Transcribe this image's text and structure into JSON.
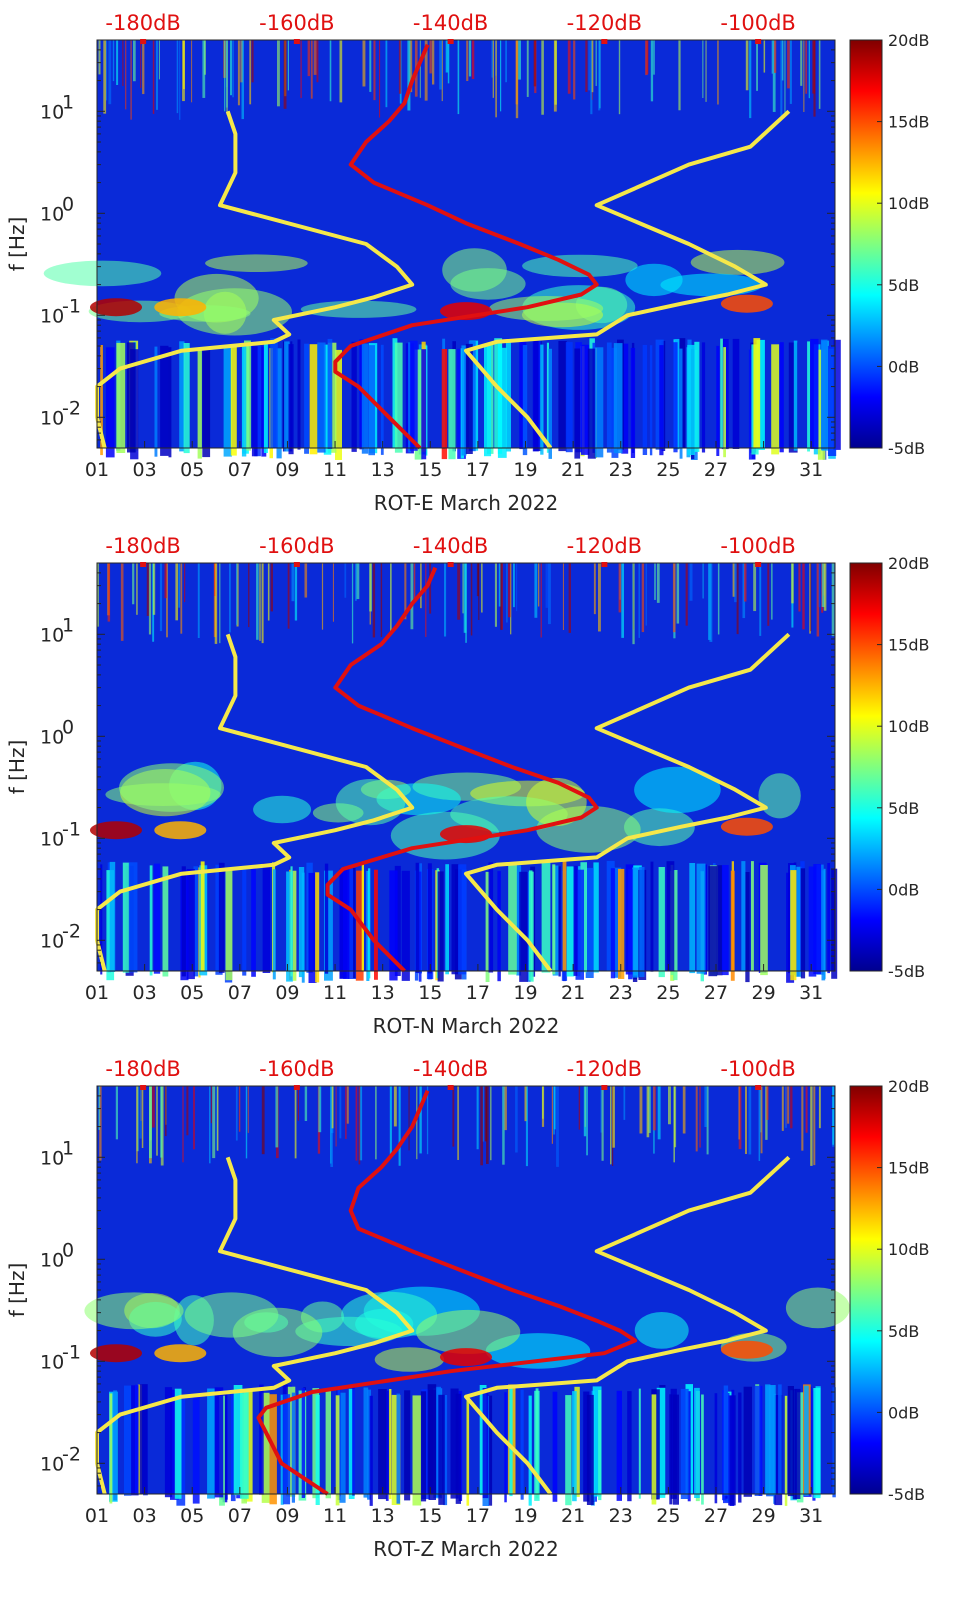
{
  "figure": {
    "background": "#ffffff",
    "axis_color": "#262626",
    "colormap": "jet",
    "accent_red": "#e01010",
    "curve_yellow": "#f5e84a"
  },
  "chart_data": [
    {
      "type": "heatmap",
      "xlabel": "ROT-E March 2022",
      "ylabel": "f [Hz]",
      "x_ticks": [
        "01",
        "03",
        "05",
        "07",
        "09",
        "11",
        "13",
        "15",
        "17",
        "19",
        "21",
        "23",
        "25",
        "27",
        "29",
        "31"
      ],
      "x_range": [
        1,
        32
      ],
      "y_scale": "log",
      "y_ticks": [
        "10^-2",
        "10^-1",
        "10^0",
        "10^1"
      ],
      "y_range": [
        0.005,
        50
      ],
      "colorbar": {
        "ticks": [
          "20dB",
          "15dB",
          "10dB",
          "5dB",
          "0dB",
          "-5dB"
        ],
        "range": [
          -5,
          20
        ]
      },
      "top_axis_ticks": [
        "-180dB",
        "-160dB",
        "-140dB",
        "-120dB",
        "-100dB"
      ],
      "top_axis_range": [
        -186,
        -90
      ],
      "red_curve": {
        "f": [
          0.005,
          0.01,
          0.02,
          0.028,
          0.035,
          0.05,
          0.08,
          0.12,
          0.16,
          0.2,
          0.25,
          0.35,
          0.5,
          0.8,
          1.2,
          2,
          3,
          5,
          8,
          12,
          20,
          30,
          45
        ],
        "db": [
          -144,
          -148,
          -152,
          -155,
          -155,
          -153,
          -145,
          -130,
          -123,
          -121,
          -122,
          -126,
          -131,
          -138,
          -143,
          -150,
          -153,
          -151,
          -148,
          -146,
          -145,
          -144,
          -143
        ]
      },
      "yellow_left": {
        "f": [
          0.005,
          0.01,
          0.02,
          0.03,
          0.045,
          0.055,
          0.065,
          0.09,
          0.12,
          0.15,
          0.2,
          0.3,
          0.5,
          1.2,
          2.5,
          6,
          10
        ],
        "db": [
          -185,
          -186,
          -186,
          -183,
          -175,
          -163,
          -161,
          -163,
          -155,
          -150,
          -145,
          -147,
          -151,
          -170,
          -168,
          -168,
          -169
        ]
      },
      "yellow_right": {
        "f": [
          0.005,
          0.01,
          0.02,
          0.03,
          0.045,
          0.055,
          0.065,
          0.1,
          0.13,
          0.16,
          0.2,
          0.3,
          0.5,
          1.2,
          3,
          4.5,
          10
        ],
        "db": [
          -127,
          -130,
          -134,
          -136,
          -138,
          -134,
          -121,
          -117,
          -110,
          -104,
          -99,
          -103,
          -109,
          -121,
          -109,
          -101,
          -96
        ]
      }
    },
    {
      "type": "heatmap",
      "xlabel": "ROT-N March 2022",
      "ylabel": "f [Hz]",
      "x_ticks": [
        "01",
        "03",
        "05",
        "07",
        "09",
        "11",
        "13",
        "15",
        "17",
        "19",
        "21",
        "23",
        "25",
        "27",
        "29",
        "31"
      ],
      "x_range": [
        1,
        32
      ],
      "y_scale": "log",
      "y_ticks": [
        "10^-2",
        "10^-1",
        "10^0",
        "10^1"
      ],
      "y_range": [
        0.005,
        50
      ],
      "colorbar": {
        "ticks": [
          "20dB",
          "15dB",
          "10dB",
          "5dB",
          "0dB",
          "-5dB"
        ],
        "range": [
          -5,
          20
        ]
      },
      "top_axis_ticks": [
        "-180dB",
        "-160dB",
        "-140dB",
        "-120dB",
        "-100dB"
      ],
      "top_axis_range": [
        -186,
        -90
      ],
      "red_curve": {
        "f": [
          0.005,
          0.01,
          0.02,
          0.028,
          0.035,
          0.05,
          0.08,
          0.12,
          0.16,
          0.2,
          0.25,
          0.35,
          0.5,
          0.8,
          1.2,
          2,
          3,
          5,
          8,
          12,
          20,
          30,
          45
        ],
        "db": [
          -146,
          -150,
          -153,
          -156,
          -156,
          -154,
          -145,
          -130,
          -123,
          -121,
          -122,
          -126,
          -132,
          -139,
          -145,
          -152,
          -155,
          -153,
          -149,
          -147,
          -145,
          -143,
          -142
        ]
      },
      "yellow_left": {
        "f": [
          0.005,
          0.01,
          0.02,
          0.03,
          0.045,
          0.055,
          0.065,
          0.09,
          0.12,
          0.15,
          0.2,
          0.3,
          0.5,
          1.2,
          2.5,
          6,
          10
        ],
        "db": [
          -185,
          -186,
          -186,
          -183,
          -175,
          -163,
          -161,
          -163,
          -155,
          -150,
          -145,
          -147,
          -151,
          -170,
          -168,
          -168,
          -169
        ]
      },
      "yellow_right": {
        "f": [
          0.005,
          0.01,
          0.02,
          0.03,
          0.045,
          0.055,
          0.065,
          0.1,
          0.13,
          0.16,
          0.2,
          0.3,
          0.5,
          1.2,
          3,
          4.5,
          10
        ],
        "db": [
          -127,
          -130,
          -134,
          -136,
          -138,
          -134,
          -121,
          -117,
          -110,
          -104,
          -99,
          -103,
          -109,
          -121,
          -109,
          -101,
          -96
        ]
      }
    },
    {
      "type": "heatmap",
      "xlabel": "ROT-Z March 2022",
      "ylabel": "f [Hz]",
      "x_ticks": [
        "01",
        "03",
        "05",
        "07",
        "09",
        "11",
        "13",
        "15",
        "17",
        "19",
        "21",
        "23",
        "25",
        "27",
        "29",
        "31"
      ],
      "x_range": [
        1,
        32
      ],
      "y_scale": "log",
      "y_ticks": [
        "10^-2",
        "10^-1",
        "10^0",
        "10^1"
      ],
      "y_range": [
        0.005,
        50
      ],
      "colorbar": {
        "ticks": [
          "20dB",
          "15dB",
          "10dB",
          "5dB",
          "0dB",
          "-5dB"
        ],
        "range": [
          -5,
          20
        ]
      },
      "top_axis_ticks": [
        "-180dB",
        "-160dB",
        "-140dB",
        "-120dB",
        "-100dB"
      ],
      "top_axis_range": [
        -186,
        -90
      ],
      "red_curve": {
        "f": [
          0.005,
          0.01,
          0.02,
          0.028,
          0.035,
          0.05,
          0.08,
          0.12,
          0.16,
          0.2,
          0.25,
          0.35,
          0.5,
          0.8,
          1.2,
          2,
          3,
          5,
          8,
          12,
          20,
          30,
          45
        ],
        "db": [
          -156,
          -162,
          -164,
          -165,
          -164,
          -158,
          -140,
          -120,
          -116,
          -118,
          -121,
          -126,
          -132,
          -139,
          -145,
          -152,
          -153,
          -152,
          -149,
          -147,
          -145,
          -144,
          -143
        ]
      },
      "yellow_left": {
        "f": [
          0.005,
          0.01,
          0.02,
          0.03,
          0.045,
          0.055,
          0.065,
          0.09,
          0.12,
          0.15,
          0.2,
          0.3,
          0.5,
          1.2,
          2.5,
          6,
          10
        ],
        "db": [
          -185,
          -186,
          -186,
          -183,
          -175,
          -163,
          -161,
          -163,
          -155,
          -150,
          -145,
          -147,
          -151,
          -170,
          -168,
          -168,
          -169
        ]
      },
      "yellow_right": {
        "f": [
          0.005,
          0.01,
          0.02,
          0.03,
          0.045,
          0.055,
          0.065,
          0.1,
          0.13,
          0.16,
          0.2,
          0.3,
          0.5,
          1.2,
          3,
          4.5,
          10
        ],
        "db": [
          -127,
          -130,
          -134,
          -136,
          -138,
          -134,
          -121,
          -117,
          -110,
          -104,
          -99,
          -103,
          -109,
          -121,
          -109,
          -101,
          -96
        ]
      }
    }
  ]
}
